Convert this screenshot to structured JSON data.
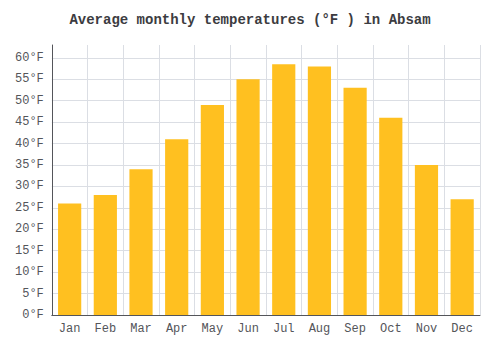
{
  "chart_data": {
    "type": "bar",
    "title": "Average monthly temperatures (°F ) in Absam",
    "categories": [
      "Jan",
      "Feb",
      "Mar",
      "Apr",
      "May",
      "Jun",
      "Jul",
      "Aug",
      "Sep",
      "Oct",
      "Nov",
      "Dec"
    ],
    "values": [
      26,
      28,
      34,
      41,
      49,
      55,
      58.5,
      58,
      53,
      46,
      35,
      27
    ],
    "color": "#FFC020",
    "ylim": [
      0,
      63
    ],
    "yticks": [
      {
        "value": 0,
        "label": "0°F"
      },
      {
        "value": 5,
        "label": "5°F"
      },
      {
        "value": 10,
        "label": "10°F"
      },
      {
        "value": 15,
        "label": "15°F"
      },
      {
        "value": 20,
        "label": "20°F"
      },
      {
        "value": 25,
        "label": "25°F"
      },
      {
        "value": 30,
        "label": "30°F"
      },
      {
        "value": 35,
        "label": "35°F"
      },
      {
        "value": 40,
        "label": "40°F"
      },
      {
        "value": 45,
        "label": "45°F"
      },
      {
        "value": 50,
        "label": "50°F"
      },
      {
        "value": 55,
        "label": "55°F"
      },
      {
        "value": 60,
        "label": "60°F"
      }
    ],
    "grid": true
  }
}
